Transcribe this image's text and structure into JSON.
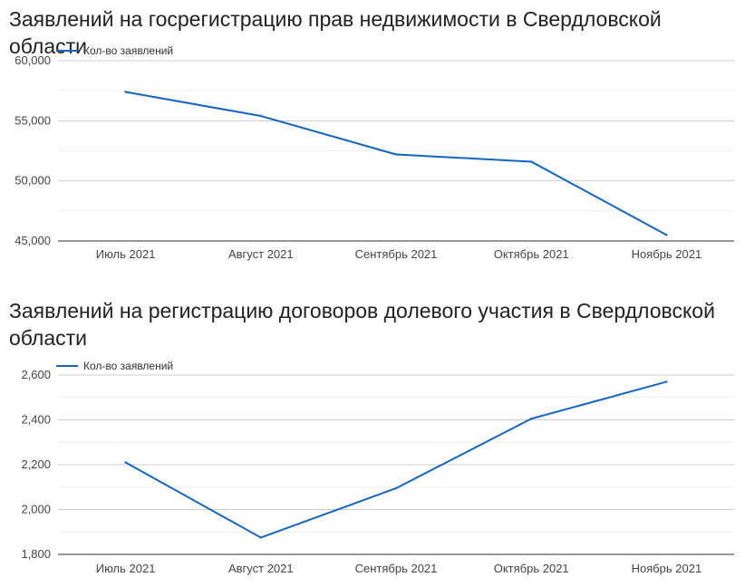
{
  "chart_data": [
    {
      "type": "line",
      "title": "Заявлений на госрегистрацию прав недвижимости в Свердловской области",
      "categories": [
        "Июль 2021",
        "Август 2021",
        "Сентябрь 2021",
        "Октябрь 2021",
        "Ноябрь 2021"
      ],
      "series": [
        {
          "name": "Кол-во заявлений",
          "values": [
            57400,
            55400,
            52200,
            51600,
            45500
          ],
          "color": "#1565c0"
        }
      ],
      "ylim": [
        45000,
        60000
      ],
      "yticks": [
        45000,
        50000,
        55000,
        60000
      ],
      "ytick_labels": [
        "45,000",
        "50,000",
        "55,000",
        "60,000"
      ],
      "grid": true,
      "legend_position": "top-left",
      "xlabel": "",
      "ylabel": ""
    },
    {
      "type": "line",
      "title": "Заявлений на регистрацию договоров долевого участия в Свердловской области",
      "categories": [
        "Июль 2021",
        "Август 2021",
        "Сентябрь 2021",
        "Октябрь 2021",
        "Ноябрь 2021"
      ],
      "series": [
        {
          "name": "Кол-во заявлений",
          "values": [
            2210,
            1875,
            2095,
            2405,
            2570
          ],
          "color": "#1565c0"
        }
      ],
      "ylim": [
        1800,
        2600
      ],
      "yticks": [
        1800,
        2000,
        2200,
        2400,
        2600
      ],
      "ytick_labels": [
        "1,800",
        "2,000",
        "2,200",
        "2,400",
        "2,600"
      ],
      "grid": true,
      "legend_position": "top-left",
      "xlabel": "",
      "ylabel": ""
    }
  ]
}
